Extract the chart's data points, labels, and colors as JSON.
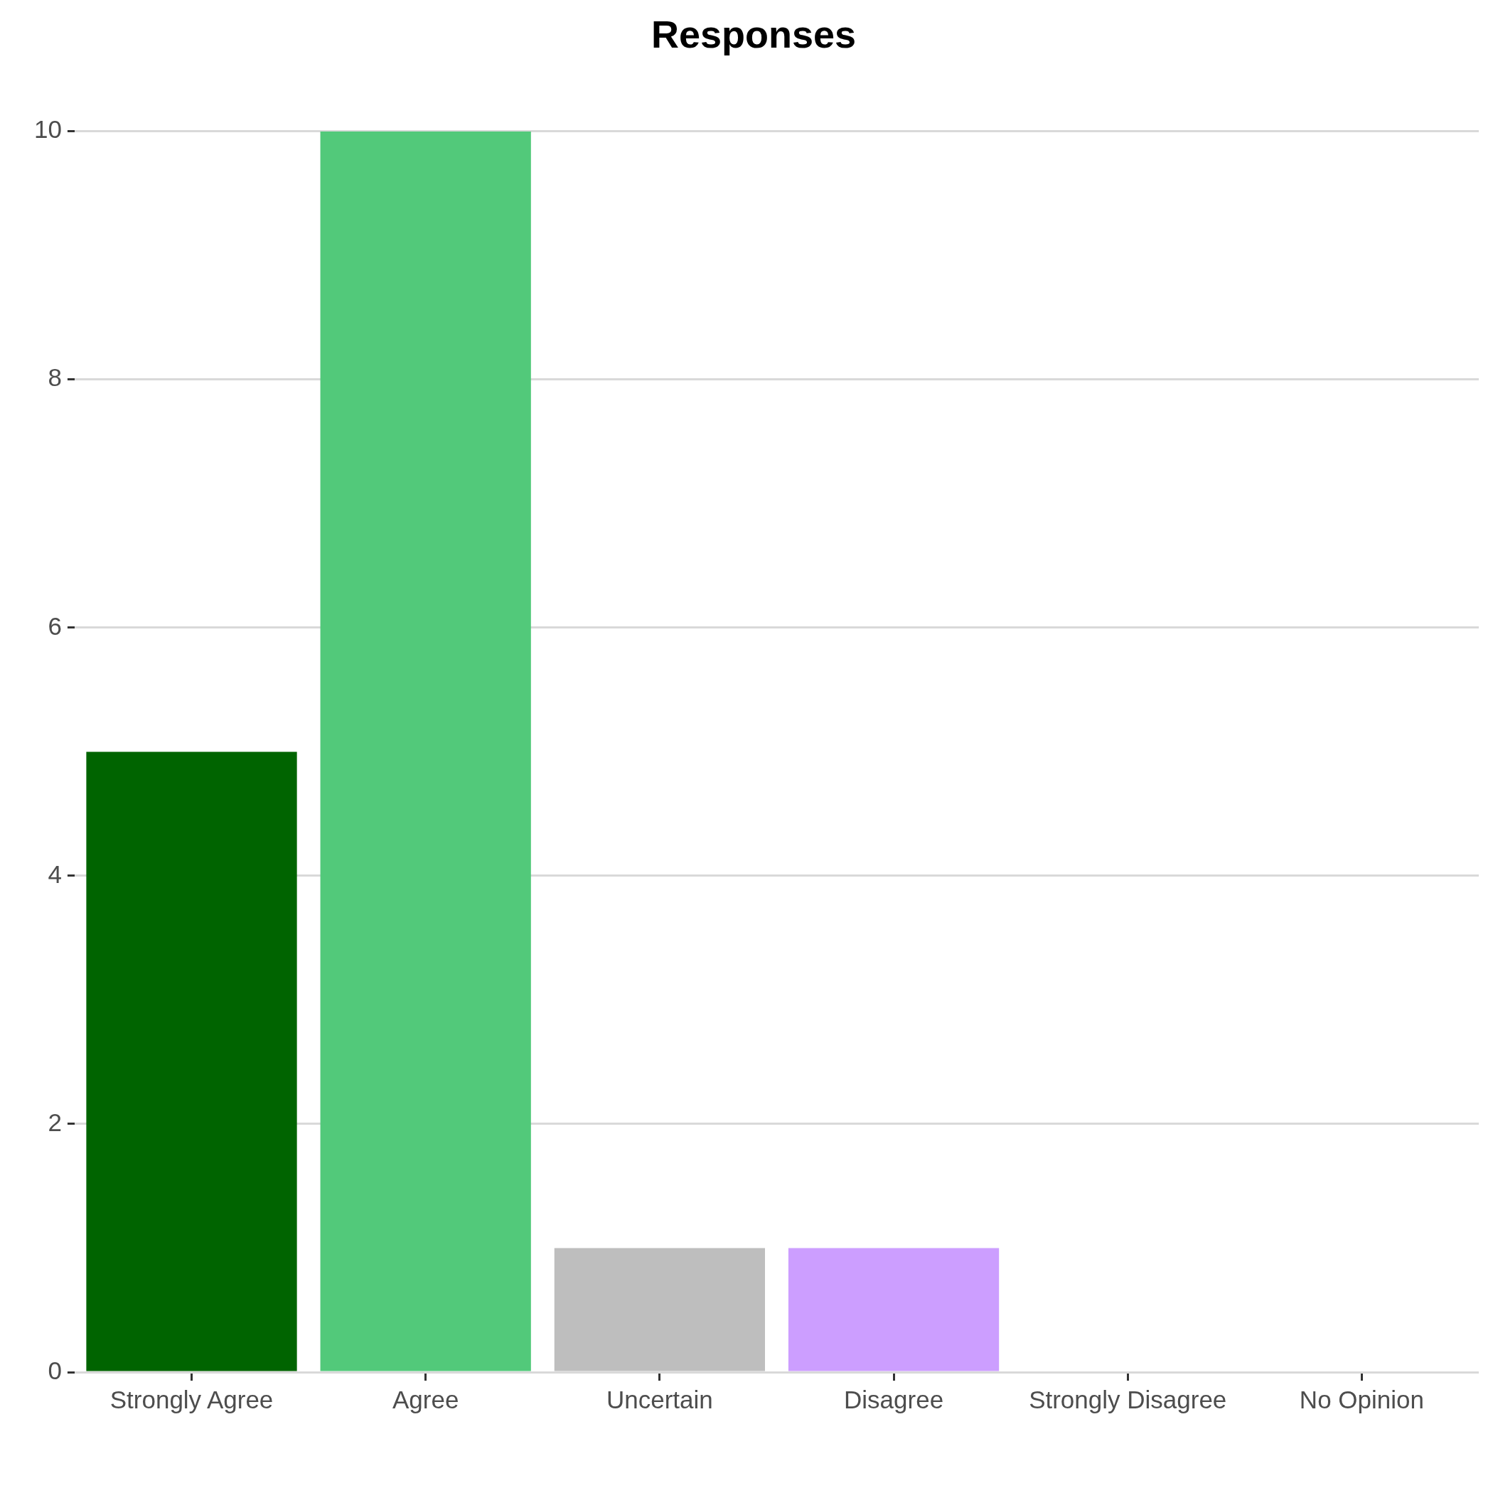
{
  "chart_data": {
    "type": "bar",
    "title": "Responses",
    "categories": [
      "Strongly Agree",
      "Agree",
      "Uncertain",
      "Disagree",
      "Strongly Disagree",
      "No Opinion"
    ],
    "values": [
      5,
      10,
      1,
      1,
      0,
      0
    ],
    "colors": [
      "#006400",
      "#52c97a",
      "#bebebe",
      "#cc9eff",
      "#cc9eff",
      "#cc9eff"
    ],
    "ylim": [
      0,
      10
    ],
    "yticks": [
      0,
      2,
      4,
      6,
      8,
      10
    ],
    "grid": "y",
    "legend": false
  }
}
